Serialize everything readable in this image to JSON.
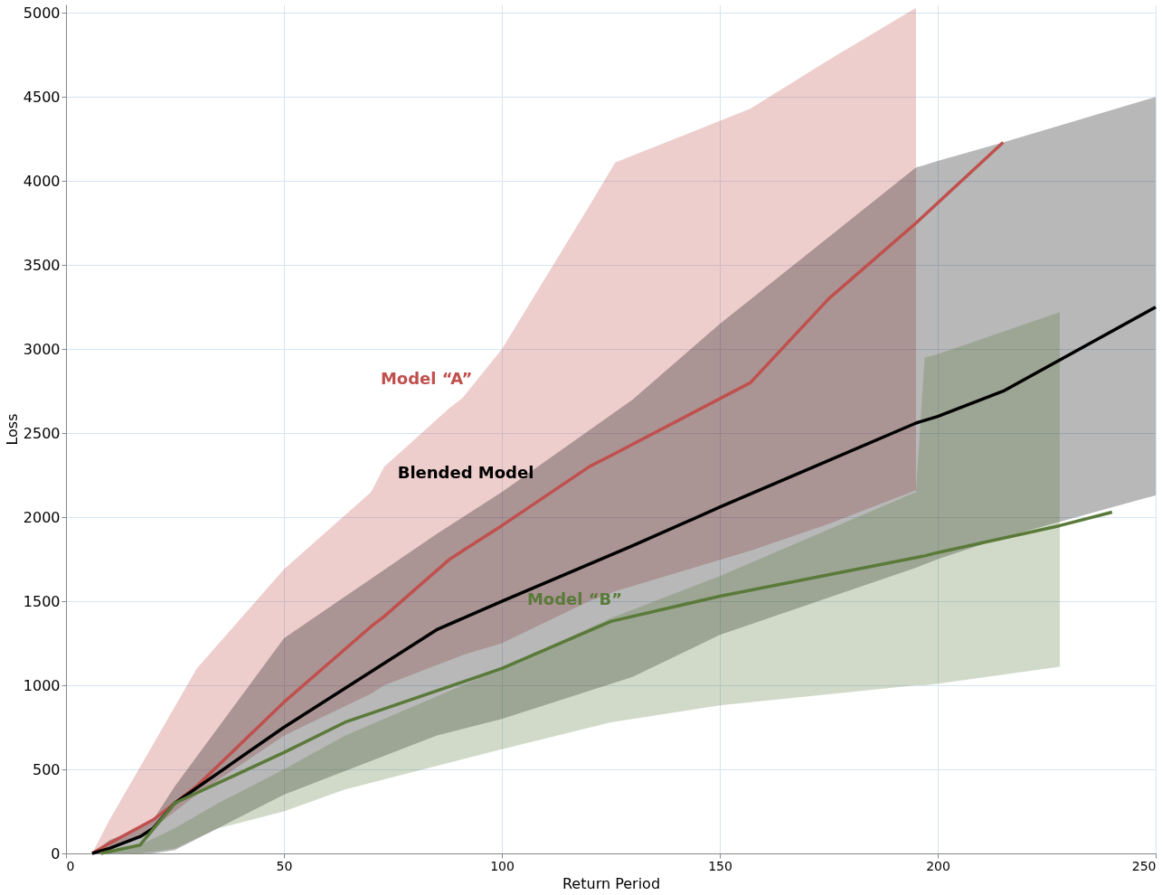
{
  "chart_data": {
    "type": "line",
    "xlabel": "Return Period",
    "ylabel": "Loss",
    "xlim": [
      0,
      250
    ],
    "xticks": [
      0,
      50,
      100,
      150,
      200,
      250
    ],
    "ylim": [
      0,
      5050
    ],
    "yticks": [
      0,
      500,
      1000,
      1500,
      2000,
      2500,
      3000,
      3500,
      4000,
      4500,
      5000
    ],
    "grid": true,
    "marker": "none",
    "line_style": "solid",
    "series": [
      {
        "name": "Model “A”",
        "color": "#c0504d",
        "x": [
          6,
          10,
          20,
          30,
          50,
          70,
          73,
          88,
          91,
          100,
          120,
          126,
          157,
          175,
          195,
          215
        ],
        "values": [
          0,
          60,
          200,
          400,
          900,
          1350,
          1410,
          1750,
          1800,
          1950,
          2300,
          2380,
          2800,
          3300,
          3750,
          4230
        ],
        "upper": [
          0,
          200,
          650,
          1100,
          1690,
          2150,
          2300,
          2650,
          2710,
          3000,
          3850,
          4110,
          4430,
          4720,
          5030,
          null
        ],
        "lower": [
          0,
          20,
          150,
          350,
          700,
          950,
          1000,
          1150,
          1180,
          1250,
          1500,
          1560,
          1800,
          1960,
          2160,
          null
        ]
      },
      {
        "name": "Blended Model",
        "color": "#000000",
        "x": [
          6,
          10,
          17,
          20,
          25,
          50,
          85,
          100,
          130,
          150,
          195,
          200,
          215,
          250
        ],
        "values": [
          0,
          30,
          100,
          150,
          300,
          750,
          1330,
          1500,
          1830,
          2060,
          2560,
          2600,
          2750,
          3250
        ],
        "upper": [
          0,
          80,
          150,
          200,
          400,
          1280,
          1900,
          2150,
          2700,
          3150,
          4080,
          4120,
          4230,
          4500
        ],
        "lower": [
          0,
          0,
          0,
          0,
          20,
          350,
          700,
          800,
          1050,
          1300,
          1700,
          1750,
          1880,
          2130
        ]
      },
      {
        "name": "Model “B”",
        "color": "#5a7a3a",
        "x": [
          8,
          17,
          25,
          35,
          50,
          64,
          100,
          125,
          150,
          195,
          197,
          200,
          228,
          240
        ],
        "values": [
          0,
          50,
          300,
          420,
          600,
          780,
          1100,
          1380,
          1530,
          1760,
          1770,
          1790,
          1950,
          2030
        ],
        "upper": [
          0,
          50,
          150,
          300,
          500,
          700,
          1100,
          1400,
          1650,
          2150,
          2950,
          2970,
          3220,
          null
        ],
        "lower": [
          0,
          0,
          30,
          150,
          250,
          380,
          620,
          780,
          880,
          1000,
          1000,
          1010,
          1110,
          null
        ]
      }
    ]
  }
}
